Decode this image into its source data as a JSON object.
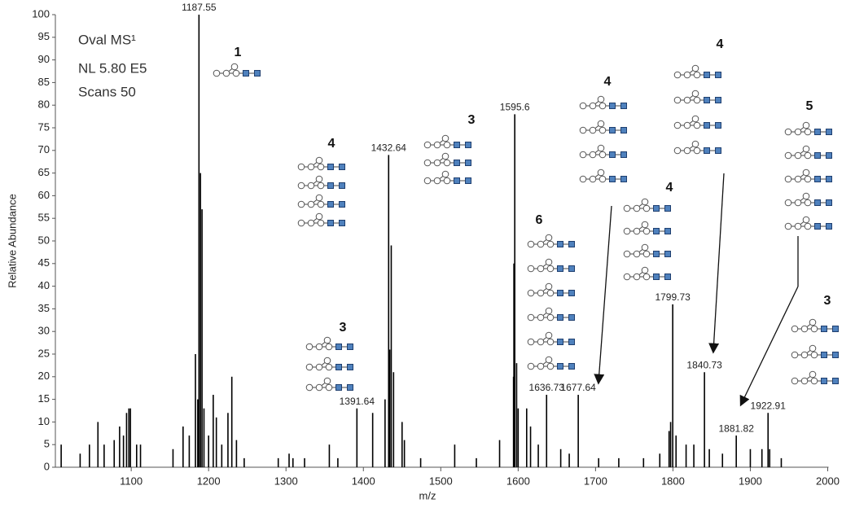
{
  "chart_data": {
    "type": "spectrum",
    "info": [
      "Oval MS¹",
      "NL 5.80 E5",
      "Scans 50"
    ],
    "x_label": "m/z",
    "y_label": "Relative Abundance",
    "color": "#000000",
    "x": [
      1009.5,
      1034,
      1046,
      1057,
      1065,
      1078,
      1085,
      1090,
      1094,
      1097,
      1099,
      1107,
      1112,
      1154,
      1167,
      1175,
      1183,
      1186,
      1187.55,
      1189.5,
      1191.5,
      1194,
      1200,
      1206,
      1210,
      1217,
      1225,
      1230,
      1236,
      1246,
      1290,
      1304,
      1309,
      1324,
      1356,
      1367,
      1391.64,
      1412,
      1428,
      1432.64,
      1434,
      1436,
      1439,
      1450,
      1453,
      1474,
      1518,
      1546,
      1576,
      1594,
      1594.5,
      1595.6,
      1598,
      1600,
      1611,
      1616,
      1626,
      1636.73,
      1655,
      1666,
      1677.64,
      1704,
      1730,
      1762,
      1783,
      1795,
      1797,
      1799.73,
      1804,
      1817,
      1827,
      1840.73,
      1847,
      1864,
      1881.82,
      1900,
      1915,
      1922.91,
      1925,
      1940
    ],
    "values": [
      5,
      3,
      5,
      10,
      5,
      6,
      9,
      7,
      12,
      13,
      13,
      5,
      5,
      4,
      9,
      7,
      25,
      15,
      100,
      65,
      57,
      13,
      7,
      16,
      11,
      5,
      12,
      20,
      6,
      2,
      2,
      3,
      2,
      2,
      5,
      2,
      13,
      12,
      15,
      69,
      26,
      49,
      21,
      10,
      6,
      2,
      5,
      2,
      6,
      20,
      45,
      78,
      23,
      13,
      13,
      9,
      5,
      16,
      4,
      3,
      16,
      2,
      2,
      2,
      3,
      8,
      10,
      36,
      7,
      5,
      5,
      21,
      4,
      3,
      7,
      4,
      4,
      12,
      4,
      2
    ],
    "x_labels": [
      null,
      null,
      null,
      null,
      null,
      null,
      null,
      null,
      null,
      null,
      null,
      null,
      null,
      null,
      null,
      null,
      null,
      null,
      "1187.55",
      null,
      null,
      null,
      null,
      null,
      null,
      null,
      null,
      null,
      null,
      null,
      null,
      null,
      null,
      null,
      null,
      null,
      "1391.64",
      null,
      null,
      "1432.64",
      null,
      null,
      null,
      null,
      null,
      null,
      null,
      null,
      null,
      null,
      null,
      "1595.6",
      null,
      null,
      null,
      null,
      null,
      "1636.73",
      null,
      null,
      "1677.64",
      null,
      null,
      null,
      null,
      null,
      null,
      "1799.73",
      null,
      null,
      null,
      "1840.73",
      null,
      null,
      "1881.82",
      null,
      null,
      "1922.91",
      null,
      null
    ],
    "xlim": [
      1002,
      2000
    ],
    "xticks": [
      1100,
      1200,
      1300,
      1400,
      1500,
      1600,
      1700,
      1800,
      1900,
      2000
    ],
    "ylim": [
      0,
      100
    ],
    "yticks": [
      0,
      5,
      10,
      15,
      20,
      25,
      30,
      35,
      40,
      45,
      50,
      55,
      60,
      65,
      70,
      75,
      80,
      85,
      90,
      95,
      100
    ],
    "structure_labels": [
      "1",
      "4",
      "3",
      "3",
      "6",
      "4",
      "4",
      "4",
      "5",
      "3"
    ]
  }
}
